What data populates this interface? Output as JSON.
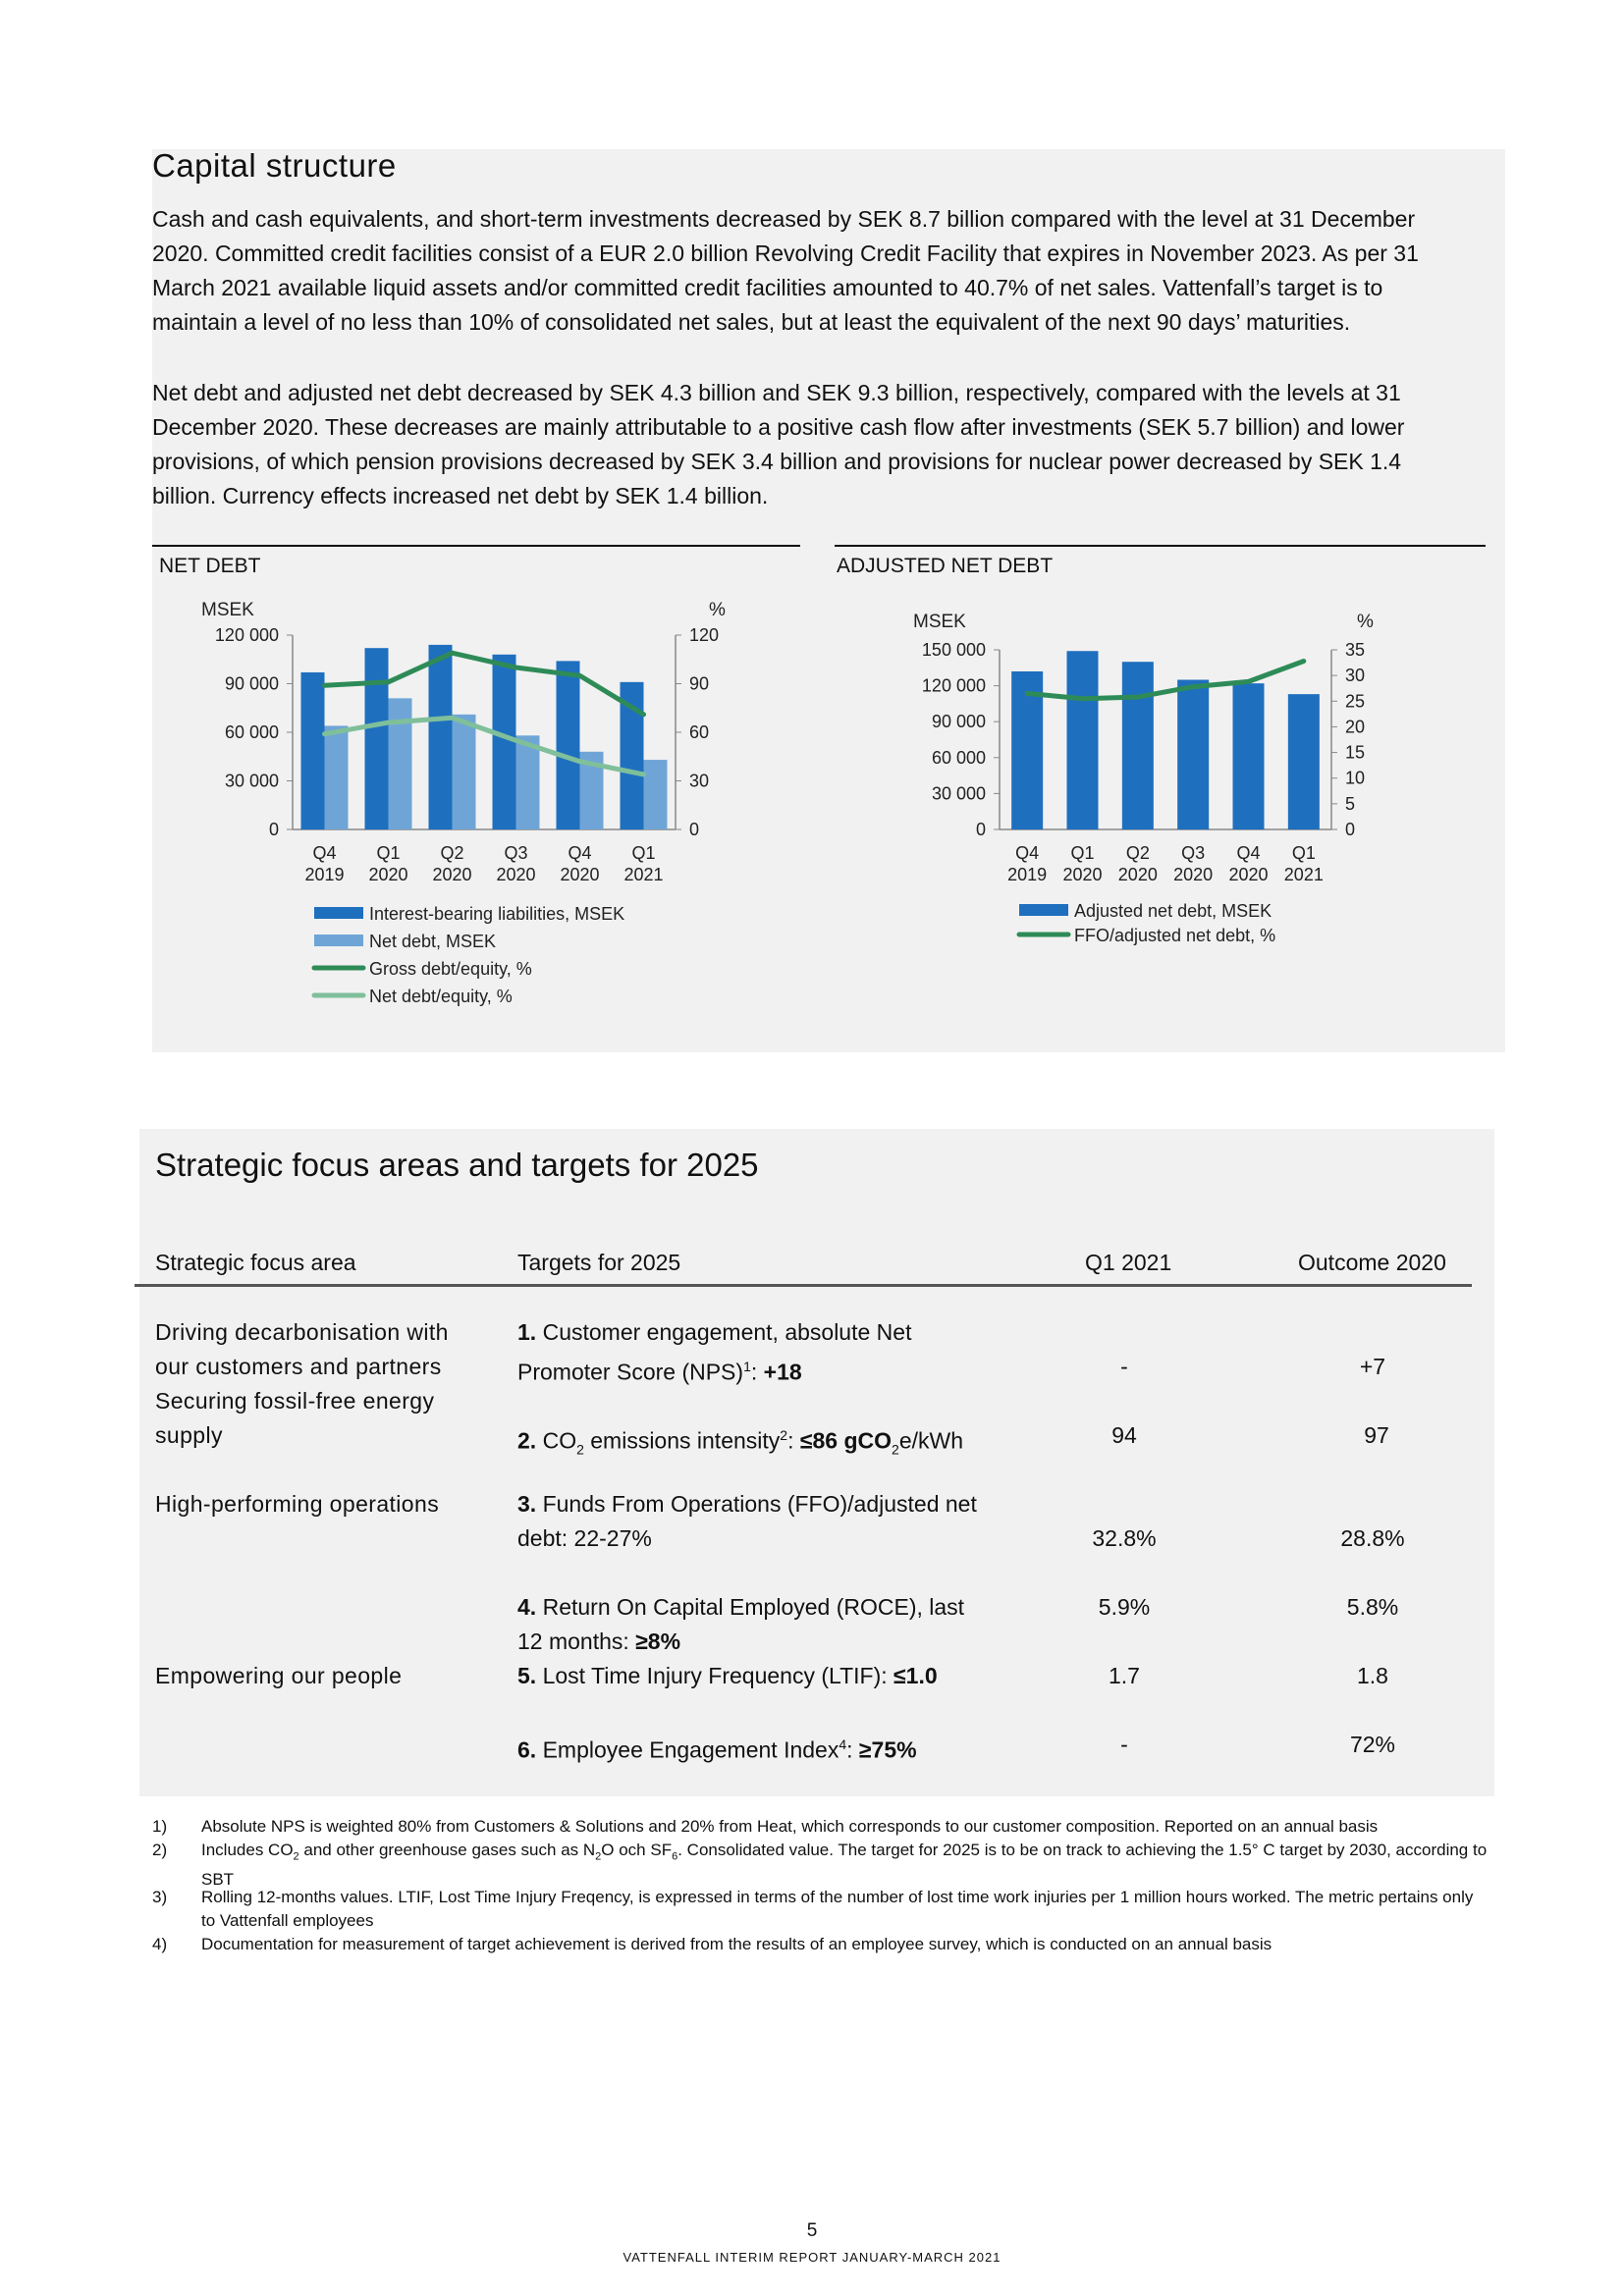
{
  "capital": {
    "title": "Capital structure",
    "p1": "Cash and cash equivalents, and short-term investments decreased by SEK 8.7 billion compared with the level at 31 December 2020. Committed credit facilities consist of a EUR 2.0 billion Revolving Credit Facility that expires in November 2023. As per 31 March 2021 available liquid assets and/or committed credit facilities amounted to 40.7% of net sales. Vattenfall’s target is to maintain a level of no less than 10% of consolidated net sales, but at least the equivalent of the next 90 days’ maturities.",
    "p2": "Net debt and adjusted net debt decreased by SEK 4.3 billion and SEK 9.3 billion, respectively, compared with the levels at 31 December 2020. These decreases are mainly attributable to a positive cash flow after investments (SEK 5.7 billion) and lower provisions, of which pension provisions decreased by SEK 3.4 billion and provisions for nuclear power decreased by SEK 1.4 billion. Currency effects increased net debt by SEK 1.4 billion."
  },
  "chart_data": [
    {
      "type": "bar",
      "title": "NET DEBT",
      "ylabel": "MSEK",
      "y2label": "%",
      "categories": [
        "Q4\n2019",
        "Q1\n2020",
        "Q2\n2020",
        "Q3\n2020",
        "Q4\n2020",
        "Q1\n2021"
      ],
      "ylim": [
        0,
        120000
      ],
      "y2lim": [
        0,
        120
      ],
      "yticks": [
        "0",
        "30 000",
        "60 000",
        "90 000",
        "120 000"
      ],
      "y2ticks": [
        "0",
        "30",
        "60",
        "90",
        "120"
      ],
      "series": [
        {
          "name": "Interest-bearing liabilities, MSEK",
          "kind": "bar",
          "axis": "left",
          "color": "#1f6fbf",
          "values": [
            97000,
            112000,
            114000,
            108000,
            104000,
            91000
          ]
        },
        {
          "name": "Net debt, MSEK",
          "kind": "bar",
          "axis": "left",
          "color": "#6fa5d6",
          "values": [
            64000,
            81000,
            71000,
            58000,
            48000,
            43000
          ]
        },
        {
          "name": "Gross debt/equity, %",
          "kind": "line",
          "axis": "right",
          "color": "#2e8b57",
          "values": [
            89,
            91,
            109,
            100,
            95,
            71
          ]
        },
        {
          "name": "Net debt/equity, %",
          "kind": "line",
          "axis": "right",
          "color": "#7fbf9a",
          "values": [
            59,
            66,
            69,
            55,
            42,
            34
          ]
        }
      ],
      "legend": "bottom",
      "grid": false
    },
    {
      "type": "bar",
      "title": "ADJUSTED NET DEBT",
      "ylabel": "MSEK",
      "y2label": "%",
      "categories": [
        "Q4\n2019",
        "Q1\n2020",
        "Q2\n2020",
        "Q3\n2020",
        "Q4\n2020",
        "Q1\n2021"
      ],
      "ylim": [
        0,
        150000
      ],
      "y2lim": [
        0,
        35
      ],
      "yticks": [
        "0",
        "30 000",
        "60 000",
        "90 000",
        "120 000",
        "150 000"
      ],
      "y2ticks": [
        "0",
        "5",
        "10",
        "15",
        "20",
        "25",
        "30",
        "35"
      ],
      "series": [
        {
          "name": "Adjusted net debt, MSEK",
          "kind": "bar",
          "axis": "left",
          "color": "#1f6fbf",
          "values": [
            132000,
            149000,
            140000,
            125000,
            122000,
            113000
          ]
        },
        {
          "name": "FFO/adjusted net debt, %",
          "kind": "line",
          "axis": "right",
          "color": "#2e8b57",
          "values": [
            26.5,
            25.5,
            25.8,
            27.8,
            28.8,
            32.8
          ]
        }
      ],
      "legend": "bottom",
      "grid": false
    }
  ],
  "strategic": {
    "title": "Strategic focus areas and targets for 2025",
    "headers": {
      "area": "Strategic focus area",
      "targets": "Targets for 2025",
      "q1": "Q1 2021",
      "outcome": "Outcome 2020"
    },
    "areas": {
      "a1": "Driving decarbonisation with",
      "a2": "our customers and partners",
      "a3": "Securing fossil-free energy",
      "a4": "supply",
      "a5": "High-performing operations",
      "a6": "Empowering our people"
    },
    "targets": {
      "t1_num": "1.",
      "t1_a": "Customer engagement, absolute Net",
      "t1_b": "Promoter Score (NPS)",
      "t1_sup": "1",
      "t1_sep": ": ",
      "t1_val": "+18",
      "t2_num": "2.",
      "t2_a": "CO",
      "t2_sub": "2",
      "t2_b": " emissions intensity",
      "t2_sup": "2",
      "t2_sep": ": ",
      "t2_val": "≤86 gCO",
      "t2_val_sub": "2",
      "t2_tail": "e/kWh",
      "t3_num": "3.",
      "t3_a": "Funds From Operations (FFO)/adjusted net",
      "t3_b": "debt: 22-27%",
      "t4_num": "4.",
      "t4_a": "Return On Capital Employed (ROCE), last",
      "t4_b": "12 months: ",
      "t4_val": "≥8%",
      "t5_num": "5.",
      "t5_a": "Lost Time Injury Frequency (LTIF): ",
      "t5_val": "≤1.0",
      "t6_num": "6.",
      "t6_a": "Employee Engagement Index",
      "t6_sup": "4",
      "t6_sep": ": ",
      "t6_val": "≥75%"
    },
    "q1": {
      "r1": "-",
      "r2": "94",
      "r3": "32.8%",
      "r4": "5.9%",
      "r5": "1.7",
      "r6": "-"
    },
    "outcome": {
      "r1": "+7",
      "r2": "97",
      "r3": "28.8%",
      "r4": "5.8%",
      "r5": "1.8",
      "r6": "72%"
    }
  },
  "footnotes": {
    "n1": "1)",
    "f1": "Absolute NPS is weighted 80% from Customers & Solutions and 20% from Heat, which corresponds to our customer composition. Reported on an annual basis",
    "n2": "2)",
    "f2_a": "Includes CO",
    "f2_sub1": "2",
    "f2_b": " and other greenhouse gases such as N",
    "f2_sub2": "2",
    "f2_c": "O och SF",
    "f2_sub3": "6",
    "f2_d": ". Consolidated value. The target for 2025 is to be on track to achieving the 1.5° C target by 2030, according to SBT",
    "n3": "3)",
    "f3": "Rolling 12-months values. LTIF, Lost Time Injury Freqency, is expressed in terms of the number of lost time work injuries per 1 million hours worked. The metric pertains only to Vattenfall employees",
    "n4": "4)",
    "f4": "Documentation for measurement of target achievement is derived from the results of an employee survey, which is conducted on an annual basis"
  },
  "page": {
    "number": "5",
    "footer": "VATTENFALL INTERIM REPORT JANUARY-MARCH 2021"
  }
}
